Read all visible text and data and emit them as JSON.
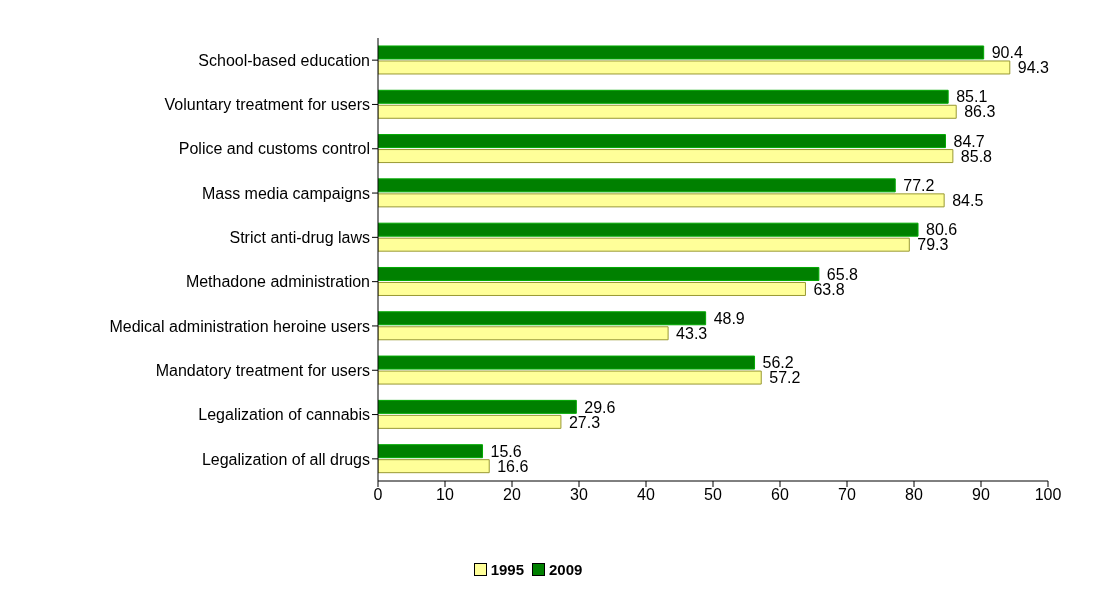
{
  "chart_data": {
    "type": "bar",
    "orientation": "horizontal",
    "categories": [
      "School-based education",
      "Voluntary  treatment for users",
      "Police and customs control",
      "Mass media campaigns",
      "Strict anti-drug laws",
      "Methadone administration",
      "Medical administration heroine users",
      "Mandatory treatment for users",
      "Legalization of cannabis",
      "Legalization of all drugs"
    ],
    "series": [
      {
        "name": "1995",
        "color": "#ffff99",
        "values": [
          94.3,
          86.3,
          85.8,
          84.5,
          79.3,
          63.8,
          43.3,
          57.2,
          27.3,
          16.6
        ]
      },
      {
        "name": "2009",
        "color": "#008000",
        "values": [
          90.4,
          85.1,
          84.7,
          77.2,
          80.6,
          65.8,
          48.9,
          56.2,
          29.6,
          15.6
        ]
      }
    ],
    "xlim": [
      0,
      100
    ],
    "xticks": [
      0,
      10,
      20,
      30,
      40,
      50,
      60,
      70,
      80,
      90,
      100
    ],
    "data_labels": true,
    "grid": false,
    "legend": "bottom"
  }
}
